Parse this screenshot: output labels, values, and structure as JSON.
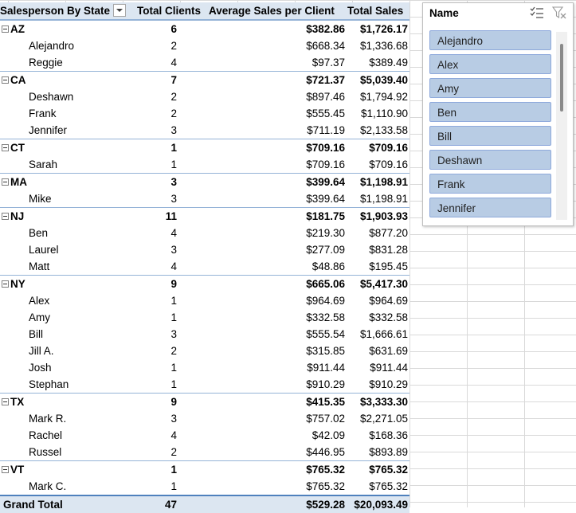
{
  "pivot": {
    "headers": {
      "row_label": "Salesperson By State",
      "total_clients": "Total Clients",
      "avg_sales": "Average Sales per Client",
      "total_sales": "Total Sales"
    },
    "groups": [
      {
        "state": "AZ",
        "clients": "6",
        "avg": "$382.86",
        "total": "$1,726.17",
        "items": [
          {
            "name": "Alejandro",
            "clients": "2",
            "avg": "$668.34",
            "total": "$1,336.68"
          },
          {
            "name": "Reggie",
            "clients": "4",
            "avg": "$97.37",
            "total": "$389.49"
          }
        ]
      },
      {
        "state": "CA",
        "clients": "7",
        "avg": "$721.37",
        "total": "$5,039.40",
        "items": [
          {
            "name": "Deshawn",
            "clients": "2",
            "avg": "$897.46",
            "total": "$1,794.92"
          },
          {
            "name": "Frank",
            "clients": "2",
            "avg": "$555.45",
            "total": "$1,110.90"
          },
          {
            "name": "Jennifer",
            "clients": "3",
            "avg": "$711.19",
            "total": "$2,133.58"
          }
        ]
      },
      {
        "state": "CT",
        "clients": "1",
        "avg": "$709.16",
        "total": "$709.16",
        "items": [
          {
            "name": "Sarah",
            "clients": "1",
            "avg": "$709.16",
            "total": "$709.16"
          }
        ]
      },
      {
        "state": "MA",
        "clients": "3",
        "avg": "$399.64",
        "total": "$1,198.91",
        "items": [
          {
            "name": "Mike",
            "clients": "3",
            "avg": "$399.64",
            "total": "$1,198.91"
          }
        ]
      },
      {
        "state": "NJ",
        "clients": "11",
        "avg": "$181.75",
        "total": "$1,903.93",
        "items": [
          {
            "name": "Ben",
            "clients": "4",
            "avg": "$219.30",
            "total": "$877.20"
          },
          {
            "name": "Laurel",
            "clients": "3",
            "avg": "$277.09",
            "total": "$831.28"
          },
          {
            "name": "Matt",
            "clients": "4",
            "avg": "$48.86",
            "total": "$195.45"
          }
        ]
      },
      {
        "state": "NY",
        "clients": "9",
        "avg": "$665.06",
        "total": "$5,417.30",
        "items": [
          {
            "name": "Alex",
            "clients": "1",
            "avg": "$964.69",
            "total": "$964.69"
          },
          {
            "name": "Amy",
            "clients": "1",
            "avg": "$332.58",
            "total": "$332.58"
          },
          {
            "name": "Bill",
            "clients": "3",
            "avg": "$555.54",
            "total": "$1,666.61"
          },
          {
            "name": "Jill A.",
            "clients": "2",
            "avg": "$315.85",
            "total": "$631.69"
          },
          {
            "name": "Josh",
            "clients": "1",
            "avg": "$911.44",
            "total": "$911.44"
          },
          {
            "name": "Stephan",
            "clients": "1",
            "avg": "$910.29",
            "total": "$910.29"
          }
        ]
      },
      {
        "state": "TX",
        "clients": "9",
        "avg": "$415.35",
        "total": "$3,333.30",
        "items": [
          {
            "name": "Mark R.",
            "clients": "3",
            "avg": "$757.02",
            "total": "$2,271.05"
          },
          {
            "name": "Rachel",
            "clients": "4",
            "avg": "$42.09",
            "total": "$168.36"
          },
          {
            "name": "Russel",
            "clients": "2",
            "avg": "$446.95",
            "total": "$893.89"
          }
        ]
      },
      {
        "state": "VT",
        "clients": "1",
        "avg": "$765.32",
        "total": "$765.32",
        "items": [
          {
            "name": "Mark C.",
            "clients": "1",
            "avg": "$765.32",
            "total": "$765.32"
          }
        ]
      }
    ],
    "grand_total": {
      "label": "Grand Total",
      "clients": "47",
      "avg": "$529.28",
      "total": "$20,093.49"
    }
  },
  "slicer": {
    "title": "Name",
    "items": [
      "Alejandro",
      "Alex",
      "Amy",
      "Ben",
      "Bill",
      "Deshawn",
      "Frank",
      "Jennifer"
    ]
  },
  "icons": {
    "multi_select": "multi-select-icon",
    "clear_filter": "clear-filter-icon",
    "collapse": "collapse-icon",
    "filter_dropdown": "filter-dropdown-icon"
  },
  "colors": {
    "header_bg": "#dce6f1",
    "border_blue": "#95b3d7",
    "slicer_item_bg": "#b8cce4"
  }
}
